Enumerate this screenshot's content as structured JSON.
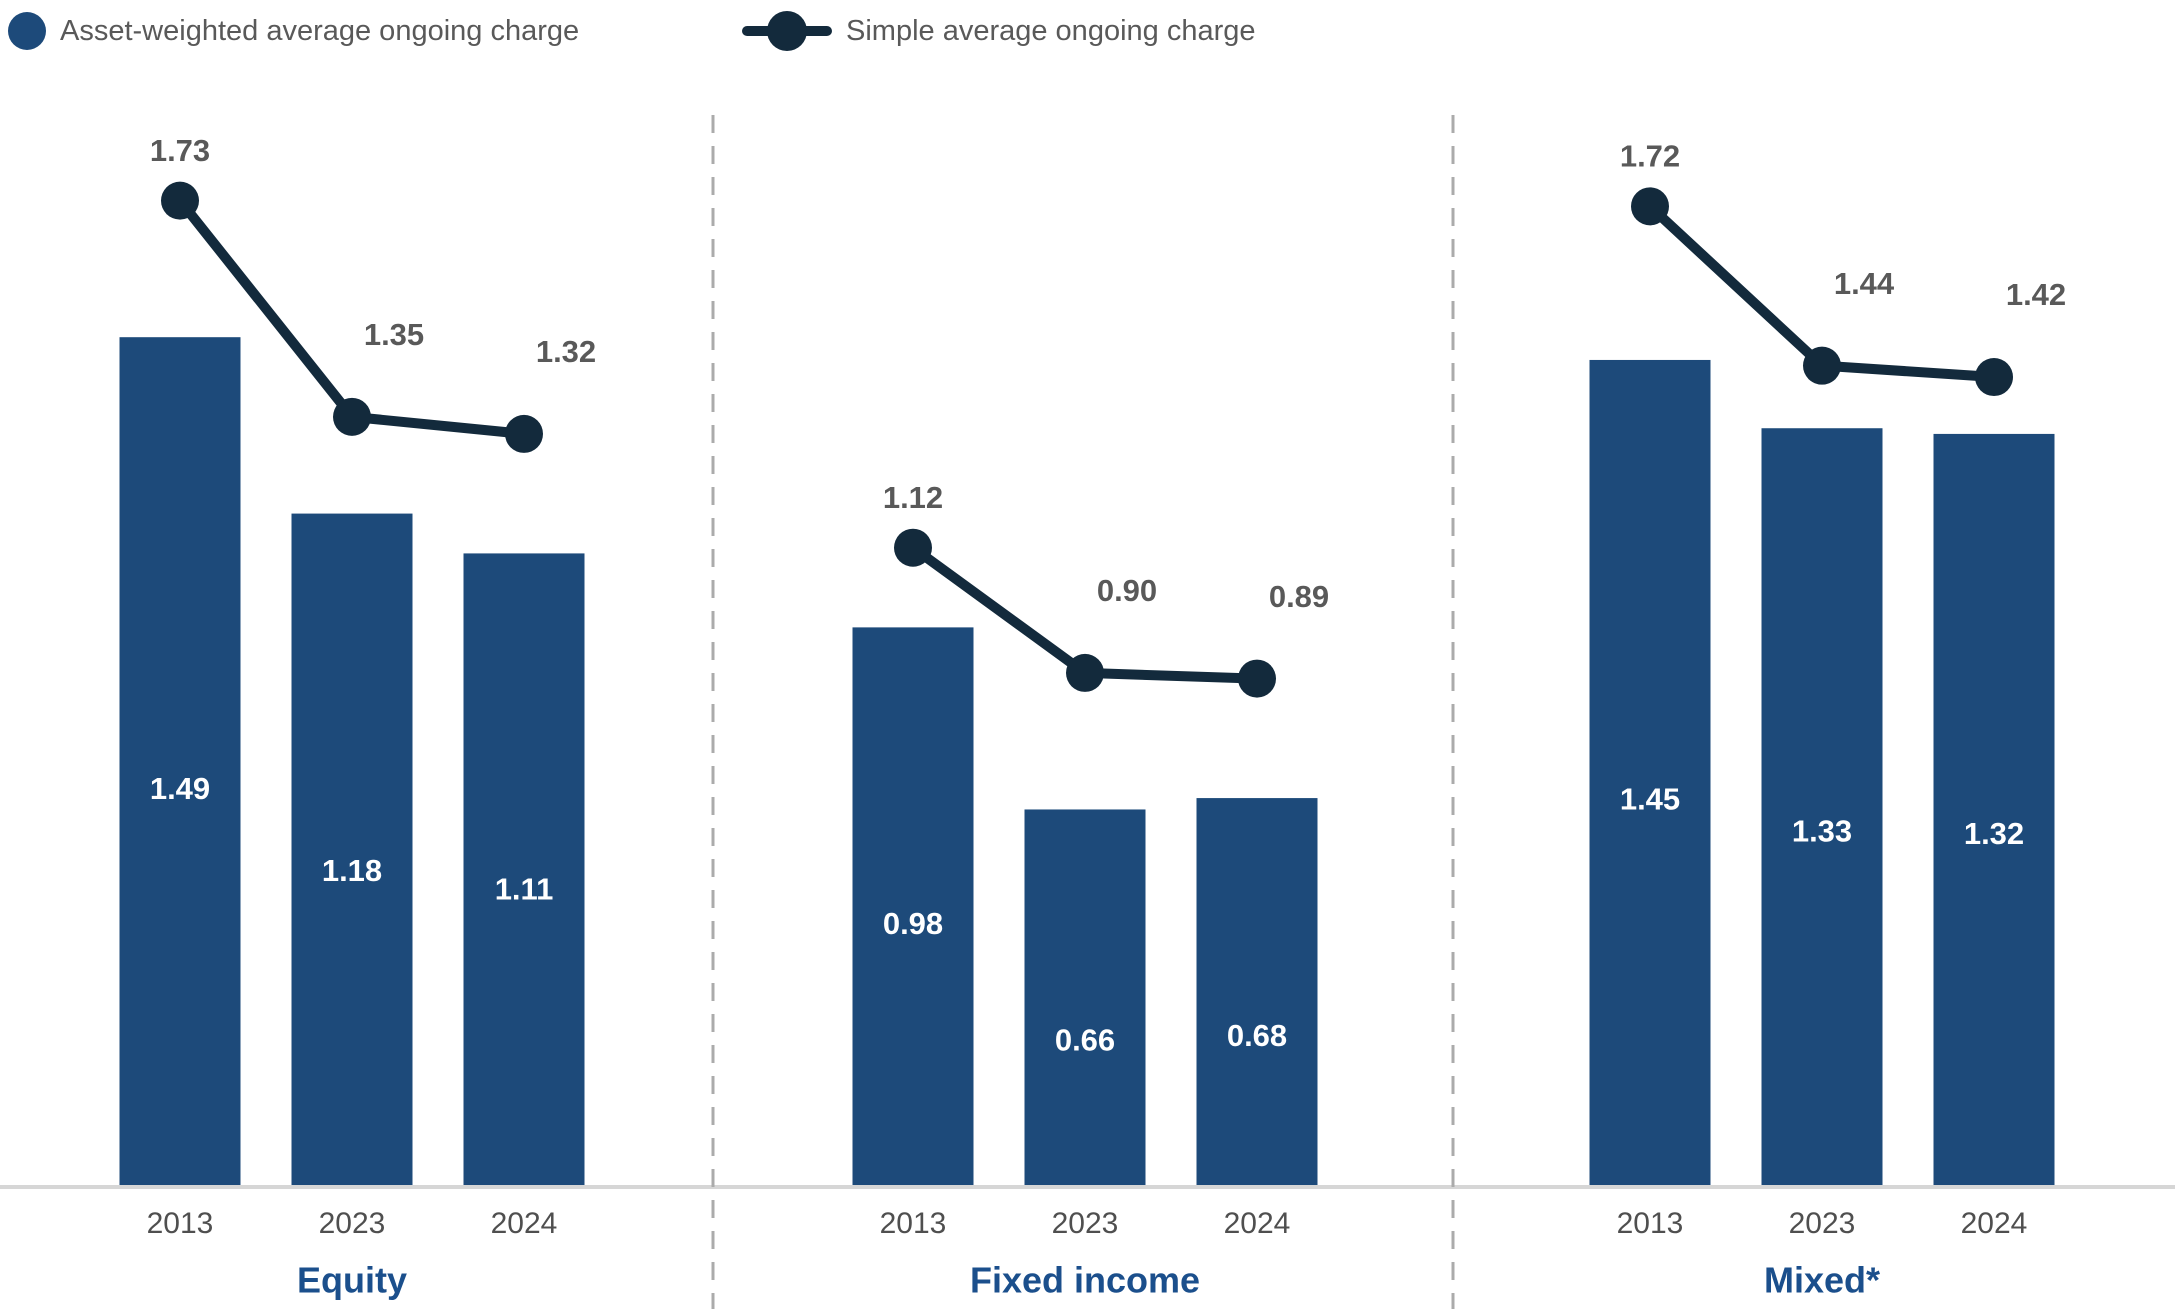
{
  "legend": [
    {
      "label": "Asset-weighted average ongoing charge",
      "marker": "filled-circle"
    },
    {
      "label": "Simple average ongoing charge",
      "marker": "line-with-dot"
    }
  ],
  "colors": {
    "bar": "#1D4A7A",
    "line": "#132A3C",
    "value_label": "#595959",
    "bar_value_label": "#FFFFFF",
    "year_label": "#4F4F4F",
    "category_label": "#1B4F8C",
    "axis": "#D6D6D6",
    "separator": "#ABABAB",
    "legend_text": "#595959",
    "background": "#FFFFFF"
  },
  "chart_data": {
    "type": "bar",
    "subtype": "grouped-bar-with-line-overlay",
    "categories": [
      "2013",
      "2023",
      "2024"
    ],
    "groups": [
      {
        "name": "Equity",
        "bars": [
          1.49,
          1.18,
          1.11
        ],
        "line": [
          1.73,
          1.35,
          1.32
        ]
      },
      {
        "name": "Fixed income",
        "bars": [
          0.98,
          0.66,
          0.68
        ],
        "line": [
          1.12,
          0.9,
          0.89
        ]
      },
      {
        "name": "Mixed*",
        "bars": [
          1.45,
          1.33,
          1.32
        ],
        "line": [
          1.72,
          1.44,
          1.42
        ]
      }
    ],
    "series": [
      {
        "name": "Asset-weighted average ongoing charge",
        "type": "bar"
      },
      {
        "name": "Simple average ongoing charge",
        "type": "line"
      }
    ],
    "title": "",
    "xlabel": "",
    "ylabel": "",
    "ylim": [
      0,
      2.08
    ],
    "grid": false,
    "value_labels_decimals": 2,
    "legend_position": "top-left"
  }
}
